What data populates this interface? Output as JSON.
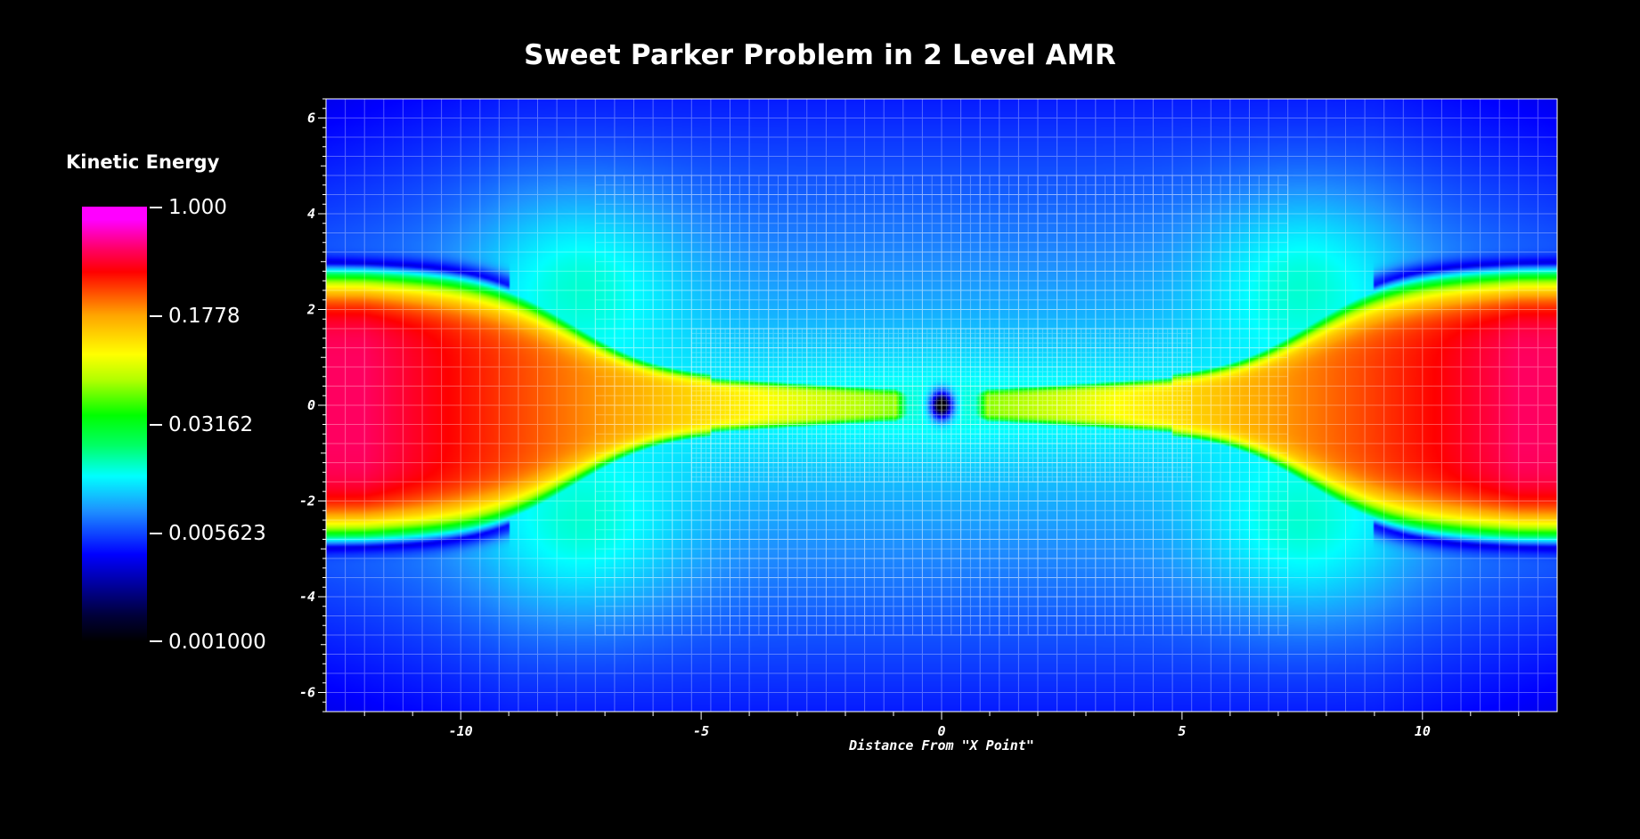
{
  "chart_data": {
    "type": "heatmap",
    "title": "Sweet Parker Problem in 2 Level AMR",
    "xlabel": "Distance From \"X Point\"",
    "ylabel": "",
    "xlim": [
      -12.8,
      12.8
    ],
    "ylim": [
      -6.4,
      6.4
    ],
    "x_ticks": [
      -10,
      -5,
      0,
      5,
      10
    ],
    "y_ticks": [
      6,
      4,
      2,
      0,
      -2,
      -4,
      -6
    ],
    "x_tick_labels": [
      "-10",
      "-5",
      "0",
      "5",
      "10"
    ],
    "y_tick_labels": [
      "6",
      "4",
      "2",
      "0",
      "-2",
      "-4",
      "-6"
    ],
    "colorbar": {
      "title": "Kinetic Energy",
      "scale": "log",
      "min": 0.001,
      "max": 1.0,
      "tick_values": [
        1.0,
        0.1778,
        0.03162,
        0.005623,
        0.001
      ],
      "tick_labels": [
        "1.000",
        "0.1778",
        "0.03162",
        "0.005623",
        "0.001000"
      ]
    },
    "amr_levels": [
      {
        "level": 0,
        "x_range": [
          -12.8,
          12.8
        ],
        "y_range": [
          -6.4,
          6.4
        ]
      },
      {
        "level": 1,
        "x_range": [
          -7.2,
          7.2
        ],
        "y_range": [
          -4.8,
          4.8
        ]
      },
      {
        "level": 2,
        "x_range": [
          -5.2,
          5.2
        ],
        "y_range": [
          -1.6,
          1.6
        ]
      }
    ],
    "grid": true,
    "legend_position": "left"
  },
  "colors": {
    "background": "#000000",
    "text": "#ffffff",
    "grid": "#ffffff"
  }
}
